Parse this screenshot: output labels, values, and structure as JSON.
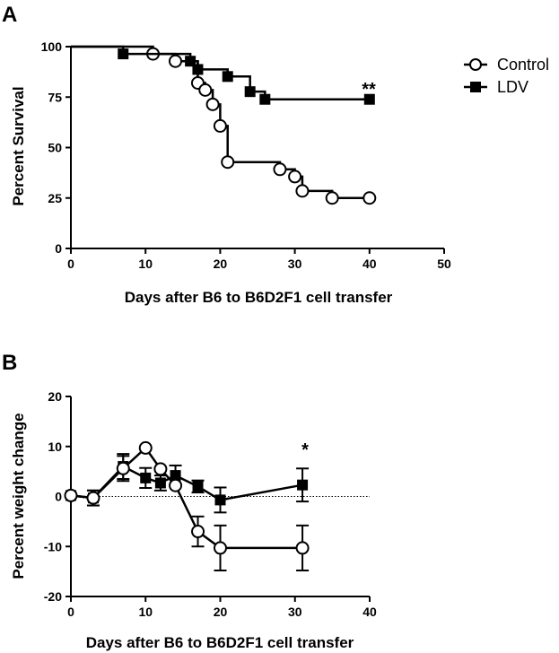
{
  "colors": {
    "ink": "#000000",
    "background": "#ffffff"
  },
  "legend": {
    "items": [
      {
        "label": "Control",
        "marker": "open-circle"
      },
      {
        "label": "LDV",
        "marker": "filled-square"
      }
    ]
  },
  "chart_data": [
    {
      "panel_label": "A",
      "type": "line",
      "style": "step (Kaplan-Meier survival)",
      "xlabel": "Days after B6 to B6D2F1 cell transfer",
      "ylabel": "Percent Survival",
      "xlim": [
        0,
        50
      ],
      "ylim": [
        0,
        100
      ],
      "x_ticks": [
        "0",
        "10",
        "20",
        "30",
        "40",
        "50"
      ],
      "y_ticks": [
        "0",
        "25",
        "50",
        "75",
        "100"
      ],
      "annotation": {
        "text": "**",
        "x": 40,
        "y": 74
      },
      "grid": false,
      "legend_position": "top-right (outside plot)",
      "series": [
        {
          "name": "Control",
          "marker": "open-circle",
          "steps": [
            [
              0,
              100
            ],
            [
              11,
              96.4
            ],
            [
              14,
              92.8
            ],
            [
              17,
              82
            ],
            [
              18,
              78.5
            ],
            [
              19,
              71.4
            ],
            [
              20,
              60.7
            ],
            [
              21,
              42.8
            ],
            [
              28,
              39.2
            ],
            [
              30,
              35.6
            ],
            [
              31,
              28.5
            ],
            [
              35,
              25
            ],
            [
              40,
              25
            ]
          ],
          "censored": [
            [
              11,
              96.4
            ],
            [
              14,
              92.8
            ],
            [
              17,
              82
            ],
            [
              18,
              78.5
            ],
            [
              19,
              71.4
            ],
            [
              20,
              60.7
            ],
            [
              21,
              42.8
            ],
            [
              28,
              39.2
            ],
            [
              30,
              35.6
            ],
            [
              31,
              28.5
            ],
            [
              35,
              25
            ],
            [
              40,
              25
            ]
          ]
        },
        {
          "name": "LDV",
          "marker": "filled-square",
          "steps": [
            [
              0,
              100
            ],
            [
              7,
              96.4
            ],
            [
              16,
              92.8
            ],
            [
              17,
              88.7
            ],
            [
              21,
              85.2
            ],
            [
              24,
              77.7
            ],
            [
              26,
              73.9
            ],
            [
              40,
              73.9
            ]
          ],
          "censored": [
            [
              7,
              96.4
            ],
            [
              16,
              92.8
            ],
            [
              17,
              88.7
            ],
            [
              21,
              85.2
            ],
            [
              24,
              77.7
            ],
            [
              26,
              73.9
            ],
            [
              40,
              73.9
            ]
          ]
        }
      ]
    },
    {
      "panel_label": "B",
      "type": "line",
      "xlabel": "Days after B6 to B6D2F1 cell transfer",
      "ylabel": "Percent weight change",
      "xlim": [
        0,
        40
      ],
      "ylim": [
        -20,
        20
      ],
      "x_ticks": [
        "0",
        "10",
        "20",
        "30",
        "40"
      ],
      "y_ticks": [
        "-20",
        "-10",
        "0",
        "10",
        "20"
      ],
      "reference_line": {
        "y": 0,
        "style": "dotted"
      },
      "annotation": {
        "text": "*",
        "x": 31,
        "y": 5.6
      },
      "grid": false,
      "series": [
        {
          "name": "Control",
          "marker": "open-circle",
          "x": [
            0,
            3,
            7,
            10,
            12,
            14,
            17,
            20,
            31
          ],
          "y": [
            0.2,
            -0.3,
            5.6,
            9.7,
            5.5,
            2.2,
            -7.0,
            -10.3,
            -10.3
          ],
          "err": [
            0,
            1.5,
            2.5,
            0,
            0,
            0,
            3.0,
            4.5,
            4.5
          ]
        },
        {
          "name": "LDV",
          "marker": "filled-square",
          "x": [
            0,
            3,
            7,
            10,
            12,
            14,
            17,
            20,
            31
          ],
          "y": [
            0.2,
            -0.3,
            6.0,
            3.7,
            2.7,
            4.2,
            2.0,
            -0.7,
            2.3
          ],
          "err": [
            0,
            1.5,
            2.5,
            2.0,
            1.5,
            2.0,
            1.2,
            2.5,
            3.3
          ]
        }
      ]
    }
  ]
}
